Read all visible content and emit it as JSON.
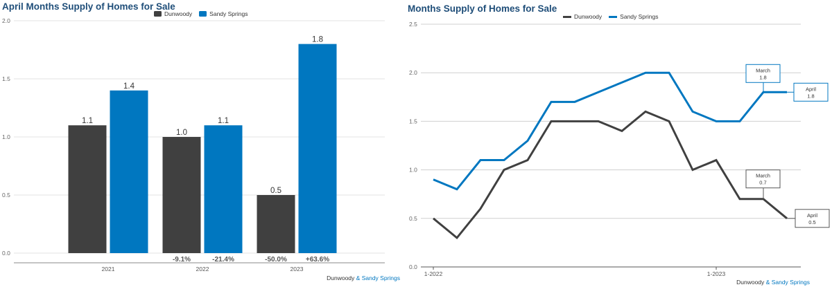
{
  "colors": {
    "dunwoody": "#404040",
    "sandy_springs": "#0077c0",
    "title": "#1f4e79",
    "grid": "#e3e3e3"
  },
  "credit": {
    "area1": "Dunwoody",
    "amp": "&",
    "area2": "Sandy Springs"
  },
  "chart_data": [
    {
      "type": "bar",
      "title": "April Months Supply of Homes for Sale",
      "categories": [
        "2021",
        "2022",
        "2023"
      ],
      "series": [
        {
          "name": "Dunwoody",
          "values": [
            1.1,
            1.0,
            0.5
          ],
          "labels": [
            "1.1",
            "1.0",
            "0.5"
          ],
          "changes": [
            "",
            "-9.1%",
            "-50.0%"
          ]
        },
        {
          "name": "Sandy Springs",
          "values": [
            1.4,
            1.1,
            1.8
          ],
          "labels": [
            "1.4",
            "1.1",
            "1.8"
          ],
          "changes": [
            "",
            "-21.4%",
            "+63.6%"
          ]
        }
      ],
      "ylim": [
        0,
        2.0
      ],
      "yticks": [
        "0.0",
        "0.5",
        "1.0",
        "1.5",
        "2.0"
      ],
      "grid": true,
      "legend": "top-center",
      "xlabel": "",
      "ylabel": ""
    },
    {
      "type": "line",
      "title": "Months Supply of Homes for Sale",
      "x": [
        "1-2022",
        "2-2022",
        "3-2022",
        "4-2022",
        "5-2022",
        "6-2022",
        "7-2022",
        "8-2022",
        "9-2022",
        "10-2022",
        "11-2022",
        "12-2022",
        "1-2023",
        "2-2023",
        "3-2023",
        "4-2023"
      ],
      "xticks": [
        "1-2022",
        "1-2023"
      ],
      "series": [
        {
          "name": "Dunwoody",
          "values": [
            0.5,
            0.3,
            0.6,
            1.0,
            1.1,
            1.5,
            1.5,
            1.5,
            1.4,
            1.6,
            1.5,
            1.0,
            1.1,
            0.7,
            0.7,
            0.5
          ]
        },
        {
          "name": "Sandy Springs",
          "values": [
            0.9,
            0.8,
            1.1,
            1.1,
            1.3,
            1.7,
            1.7,
            1.8,
            1.9,
            2.0,
            2.0,
            1.6,
            1.5,
            1.5,
            1.8,
            1.8
          ]
        }
      ],
      "annotations": [
        {
          "series": "Sandy Springs",
          "month": "March",
          "value": "1.8"
        },
        {
          "series": "Sandy Springs",
          "month": "April",
          "value": "1.8"
        },
        {
          "series": "Dunwoody",
          "month": "March",
          "value": "0.7"
        },
        {
          "series": "Dunwoody",
          "month": "April",
          "value": "0.5"
        }
      ],
      "ylim": [
        0,
        2.5
      ],
      "yticks": [
        "0.0",
        "0.5",
        "1.0",
        "1.5",
        "2.0",
        "2.5"
      ],
      "grid": true,
      "legend": "top-center",
      "xlabel": "",
      "ylabel": ""
    }
  ]
}
